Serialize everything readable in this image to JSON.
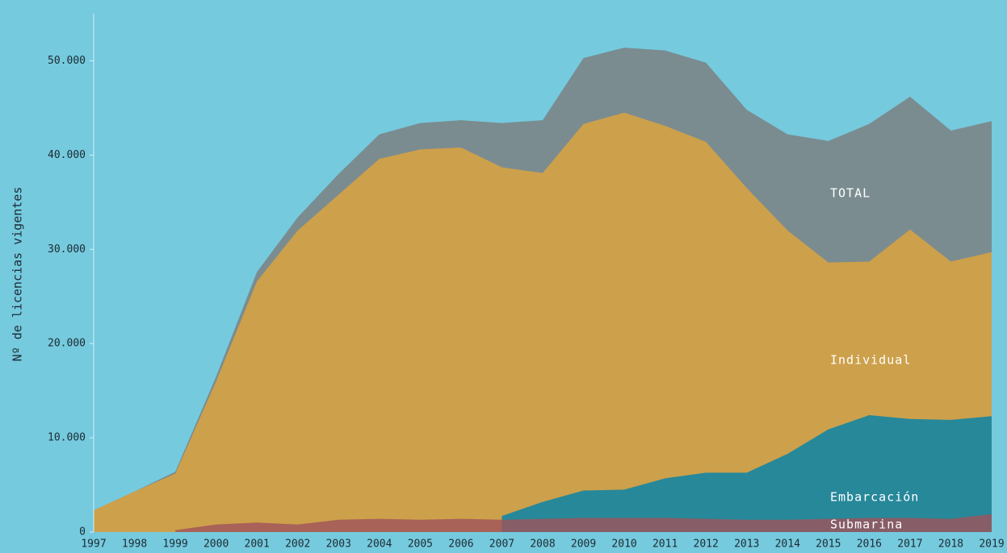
{
  "chart_data": {
    "type": "area",
    "y_label": "Nº de licencias vigentes",
    "categories": [
      "1997",
      "1998",
      "1999",
      "2000",
      "2001",
      "2002",
      "2003",
      "2004",
      "2005",
      "2006",
      "2007",
      "2008",
      "2009",
      "2010",
      "2011",
      "2012",
      "2013",
      "2014",
      "2015",
      "2016",
      "2017",
      "2018",
      "2019"
    ],
    "series": [
      {
        "name": "TOTAL",
        "color": "#7a8c90",
        "values": [
          2300,
          4300,
          6400,
          16500,
          27600,
          33400,
          38000,
          42200,
          43400,
          43700,
          43400,
          43700,
          50300,
          51400,
          51100,
          49800,
          44800,
          42200,
          41500,
          43300,
          46200,
          42600,
          43600
        ]
      },
      {
        "name": "Individual",
        "color": "#cda04b",
        "values": [
          2300,
          4300,
          6200,
          16000,
          26600,
          32000,
          35800,
          39600,
          40600,
          40800,
          38700,
          38100,
          43300,
          44500,
          43100,
          41400,
          36500,
          32000,
          28600,
          28700,
          32100,
          28700,
          29700
        ]
      },
      {
        "name": "Embarcación",
        "color": "#27889a",
        "values": [
          null,
          null,
          null,
          null,
          null,
          null,
          null,
          null,
          null,
          null,
          1700,
          3200,
          4400,
          4500,
          5700,
          6300,
          6300,
          8300,
          10900,
          12400,
          12000,
          11900,
          12300
        ]
      },
      {
        "name": "Submarina",
        "color": "#a0525a",
        "values": [
          null,
          null,
          200,
          800,
          1000,
          800,
          1300,
          1400,
          1300,
          1400,
          1300,
          1400,
          1500,
          1500,
          1500,
          1400,
          1300,
          1300,
          1400,
          1500,
          1500,
          1400,
          1900
        ]
      }
    ],
    "ylim": [
      0,
      55000
    ],
    "yticks": [
      0,
      {
        "value": 10000,
        "label": "10.000"
      },
      {
        "value": 20000,
        "label": "20.000"
      },
      {
        "value": 30000,
        "label": "30.000"
      },
      {
        "value": 40000,
        "label": "40.000"
      },
      {
        "value": 50000,
        "label": "50.000"
      }
    ],
    "grid": false
  }
}
